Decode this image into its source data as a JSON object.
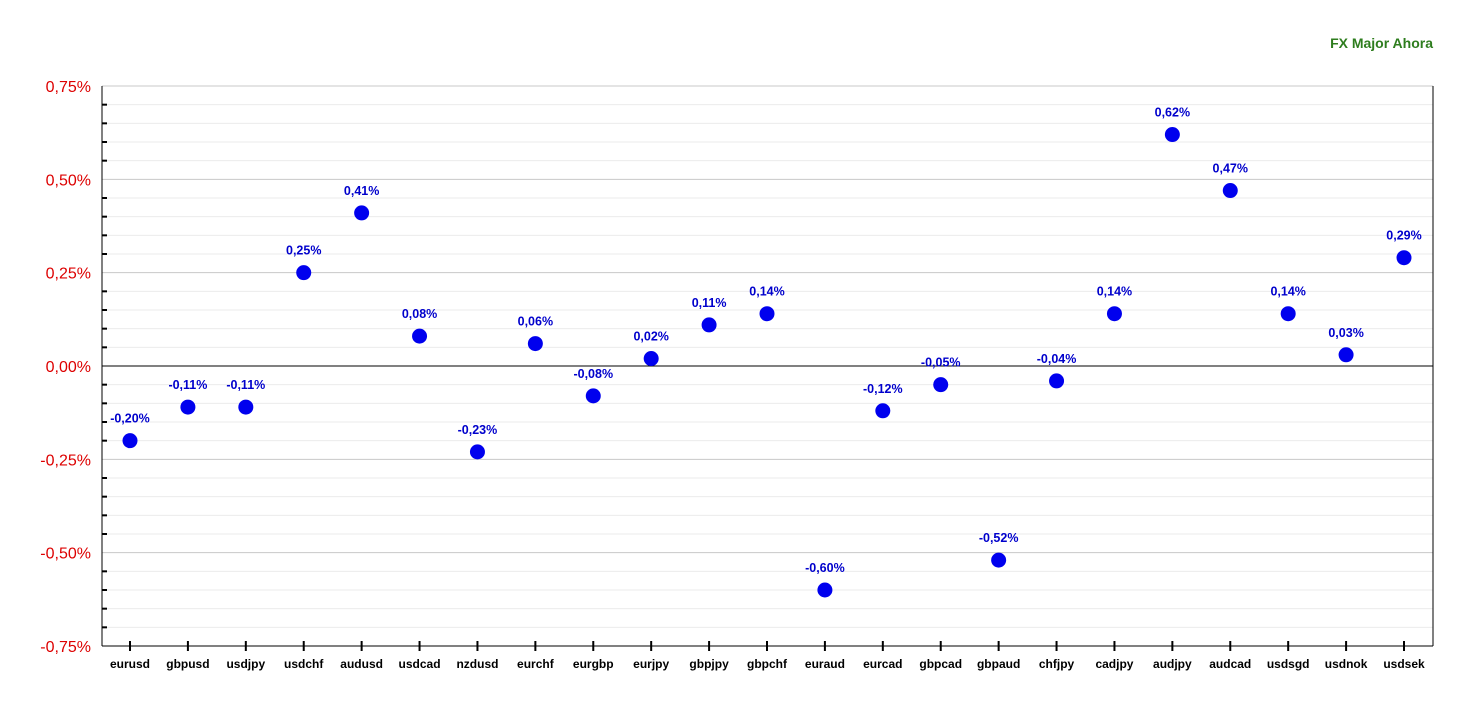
{
  "chart_data": {
    "type": "scatter",
    "title": "FX Major Ahora",
    "categories": [
      "eurusd",
      "gbpusd",
      "usdjpy",
      "usdchf",
      "audusd",
      "usdcad",
      "nzdusd",
      "eurchf",
      "eurgbp",
      "eurjpy",
      "gbpjpy",
      "gbpchf",
      "euraud",
      "eurcad",
      "gbpcad",
      "gbpaud",
      "chfjpy",
      "cadjpy",
      "audjpy",
      "audcad",
      "usdsgd",
      "usdnok",
      "usdsek"
    ],
    "values": [
      -0.2,
      -0.11,
      -0.11,
      0.25,
      0.41,
      0.08,
      -0.23,
      0.06,
      -0.08,
      0.02,
      0.11,
      0.14,
      -0.6,
      -0.12,
      -0.05,
      -0.52,
      -0.04,
      0.14,
      0.62,
      0.47,
      0.14,
      0.03,
      0.29
    ],
    "data_labels": [
      "-0,20%",
      "-0,11%",
      "-0,11%",
      "0,25%",
      "0,41%",
      "0,08%",
      "-0,23%",
      "0,06%",
      "-0,08%",
      "0,02%",
      "0,11%",
      "0,14%",
      "-0,60%",
      "-0,12%",
      "-0,05%",
      "-0,52%",
      "-0,04%",
      "0,14%",
      "0,62%",
      "0,47%",
      "0,14%",
      "0,03%",
      "0,29%"
    ],
    "ylim": [
      -0.75,
      0.75
    ],
    "y_ticks": [
      0.75,
      0.5,
      0.25,
      0.0,
      -0.25,
      -0.5,
      -0.75
    ],
    "y_tick_labels": [
      "0,75%",
      "0,50%",
      "0,25%",
      "0,00%",
      "-0,25%",
      "-0,50%",
      "-0,75%"
    ],
    "grid": true,
    "legend": "none",
    "colors": {
      "marker": "#0000ee",
      "data_label": "#0000cc",
      "y_tick_label": "#dd0000",
      "title": "#2e7d1e",
      "major_grid": "#c8c8c8",
      "minor_grid": "#ebebeb",
      "zero_line": "#000000"
    }
  }
}
